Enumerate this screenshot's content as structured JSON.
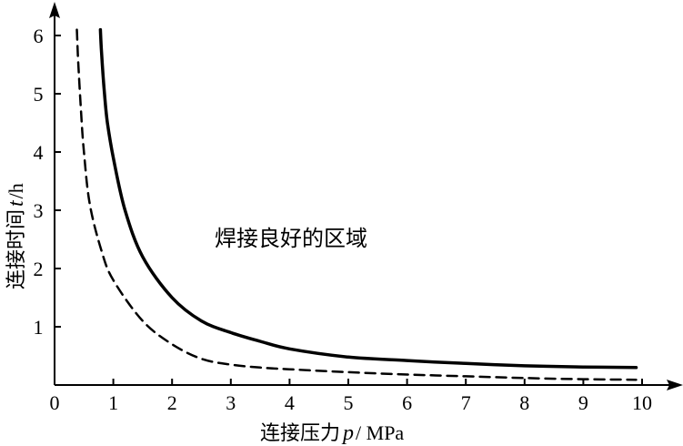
{
  "chart_data": {
    "type": "line",
    "xlabel": "连接压力",
    "xvar": "p",
    "xunit": "/ MPa",
    "ylabel": "连接时间",
    "yvar": "t",
    "yunit": "/h",
    "xlim": [
      0,
      10
    ],
    "ylim": [
      0,
      6.2
    ],
    "xticks": [
      "0",
      "1",
      "2",
      "3",
      "4",
      "5",
      "6",
      "7",
      "8",
      "9",
      "10"
    ],
    "yticks": [
      "1",
      "2",
      "3",
      "4",
      "5",
      "6"
    ],
    "annotation": "焊接良好的区域",
    "grid": false,
    "series": [
      {
        "style": "solid",
        "x": [
          0.78,
          0.8,
          0.85,
          0.9,
          1.0,
          1.2,
          1.5,
          2.0,
          2.5,
          3.0,
          3.5,
          4.0,
          5.0,
          6.0,
          7.0,
          8.0,
          9.0,
          9.9
        ],
        "y": [
          6.1,
          5.7,
          5.0,
          4.5,
          3.9,
          3.0,
          2.2,
          1.5,
          1.1,
          0.9,
          0.75,
          0.62,
          0.48,
          0.42,
          0.37,
          0.33,
          0.31,
          0.3
        ]
      },
      {
        "style": "dashed",
        "x": [
          0.38,
          0.4,
          0.45,
          0.5,
          0.6,
          0.8,
          1.0,
          1.5,
          2.0,
          2.5,
          3.0,
          3.5,
          4.0,
          5.0,
          6.0,
          7.0,
          8.0,
          9.0,
          9.9
        ],
        "y": [
          6.1,
          5.6,
          4.7,
          4.0,
          3.1,
          2.3,
          1.8,
          1.1,
          0.7,
          0.45,
          0.35,
          0.3,
          0.27,
          0.22,
          0.18,
          0.15,
          0.12,
          0.1,
          0.09
        ]
      }
    ]
  }
}
